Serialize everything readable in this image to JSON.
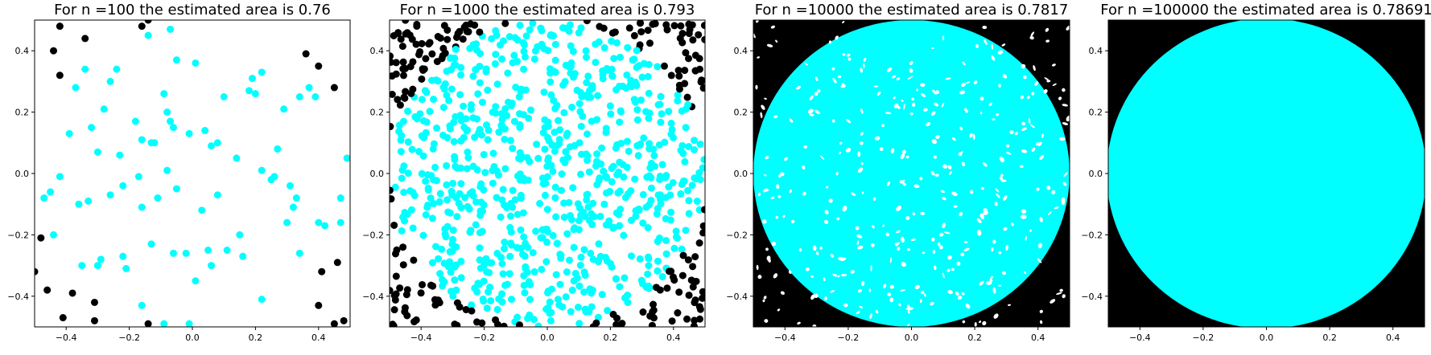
{
  "chart_data": [
    {
      "type": "scatter",
      "title": "For n =100 the estimated area is 0.76",
      "xlim": [
        -0.5,
        0.5
      ],
      "ylim": [
        -0.5,
        0.5
      ],
      "xticks": [
        -0.4,
        -0.2,
        0.0,
        0.2,
        0.4
      ],
      "xtick_labels": [
        "−0.4",
        "−0.2",
        "0.0",
        "0.2",
        "0.4"
      ],
      "yticks": [
        -0.4,
        -0.2,
        0.0,
        0.2,
        0.4
      ],
      "ytick_labels": [
        "−0.4",
        "−0.2",
        "0.0",
        "0.2",
        "0.4"
      ],
      "series": [
        {
          "color": "#00ffff",
          "points": [
            [
              -0.37,
              0.28
            ],
            [
              -0.34,
              0.34
            ],
            [
              -0.26,
              0.3
            ],
            [
              -0.24,
              0.34
            ],
            [
              -0.14,
              0.45
            ],
            [
              -0.07,
              0.47
            ],
            [
              -0.05,
              0.37
            ],
            [
              0.01,
              0.36
            ],
            [
              0.18,
              0.27
            ],
            [
              0.19,
              0.31
            ],
            [
              0.2,
              0.26
            ],
            [
              0.22,
              0.33
            ],
            [
              0.37,
              0.28
            ],
            [
              0.39,
              0.25
            ],
            [
              -0.39,
              0.13
            ],
            [
              -0.32,
              0.15
            ],
            [
              -0.28,
              0.21
            ],
            [
              -0.09,
              0.26
            ],
            [
              -0.08,
              0.2
            ],
            [
              -0.07,
              0.17
            ],
            [
              -0.13,
              0.1
            ],
            [
              -0.06,
              0.15
            ],
            [
              -0.01,
              0.13
            ],
            [
              0.04,
              0.14
            ],
            [
              0.06,
              0.09
            ],
            [
              0.08,
              0.1
            ],
            [
              -0.3,
              0.07
            ],
            [
              -0.23,
              0.06
            ],
            [
              -0.16,
              0.11
            ],
            [
              -0.12,
              0.1
            ],
            [
              0.29,
              0.21
            ],
            [
              0.34,
              0.25
            ],
            [
              -0.47,
              -0.08
            ],
            [
              -0.45,
              -0.06
            ],
            [
              -0.42,
              -0.01
            ],
            [
              -0.36,
              -0.1
            ],
            [
              -0.33,
              -0.09
            ],
            [
              -0.26,
              -0.07
            ],
            [
              -0.22,
              -0.04
            ],
            [
              -0.17,
              -0.01
            ],
            [
              -0.16,
              -0.11
            ],
            [
              -0.08,
              0.01
            ],
            [
              -0.11,
              -0.08
            ],
            [
              0.22,
              0.01
            ],
            [
              0.26,
              -0.01
            ],
            [
              0.25,
              -0.02
            ],
            [
              0.31,
              -0.04
            ],
            [
              0.33,
              -0.08
            ],
            [
              0.32,
              -0.11
            ],
            [
              0.3,
              -0.16
            ],
            [
              0.47,
              -0.08
            ],
            [
              0.49,
              0.05
            ],
            [
              -0.44,
              -0.2
            ],
            [
              -0.35,
              -0.3
            ],
            [
              -0.29,
              -0.28
            ],
            [
              -0.21,
              -0.31
            ],
            [
              -0.16,
              -0.43
            ],
            [
              -0.13,
              -0.23
            ],
            [
              -0.06,
              -0.26
            ],
            [
              -0.02,
              -0.26
            ],
            [
              0.01,
              -0.35
            ],
            [
              0.06,
              -0.3
            ],
            [
              0.05,
              -0.25
            ],
            [
              0.11,
              -0.25
            ],
            [
              0.16,
              -0.27
            ],
            [
              0.22,
              -0.41
            ],
            [
              0.34,
              -0.26
            ],
            [
              0.4,
              -0.16
            ],
            [
              0.42,
              -0.17
            ],
            [
              0.47,
              -0.16
            ],
            [
              -0.09,
              -0.49
            ],
            [
              -0.01,
              -0.49
            ],
            [
              -0.3,
              -0.3
            ],
            [
              -0.22,
              -0.27
            ],
            [
              0.03,
              -0.12
            ],
            [
              0.15,
              -0.2
            ],
            [
              -0.18,
              0.17
            ],
            [
              0.1,
              0.25
            ],
            [
              0.27,
              0.08
            ],
            [
              -0.05,
              -0.05
            ],
            [
              0.08,
              -0.07
            ],
            [
              0.14,
              0.05
            ]
          ]
        },
        {
          "color": "#000000",
          "points": [
            [
              -0.42,
              0.48
            ],
            [
              -0.34,
              0.44
            ],
            [
              -0.44,
              0.4
            ],
            [
              -0.42,
              0.32
            ],
            [
              0.36,
              0.39
            ],
            [
              0.4,
              0.35
            ],
            [
              0.45,
              0.28
            ],
            [
              -0.48,
              -0.21
            ],
            [
              -0.5,
              -0.32
            ],
            [
              -0.46,
              -0.38
            ],
            [
              -0.38,
              -0.39
            ],
            [
              -0.41,
              -0.47
            ],
            [
              -0.31,
              -0.42
            ],
            [
              -0.31,
              -0.48
            ],
            [
              -0.14,
              -0.49
            ],
            [
              0.41,
              -0.32
            ],
            [
              0.46,
              -0.29
            ],
            [
              0.4,
              -0.43
            ],
            [
              0.45,
              -0.49
            ],
            [
              0.48,
              -0.48
            ],
            [
              -0.14,
              0.5
            ],
            [
              -0.16,
              0.48
            ]
          ]
        }
      ]
    },
    {
      "type": "scatter",
      "title": "For n =1000 the estimated area is 0.793",
      "xlim": [
        -0.5,
        0.5
      ],
      "ylim": [
        -0.5,
        0.5
      ],
      "xticks": [
        -0.4,
        -0.2,
        0.0,
        0.2,
        0.4
      ],
      "xtick_labels": [
        "−0.4",
        "−0.2",
        "0.0",
        "0.2",
        "0.4"
      ],
      "yticks": [
        -0.4,
        -0.2,
        0.0,
        0.2,
        0.4
      ],
      "ytick_labels": [
        "−0.4",
        "−0.2",
        "0.0",
        "0.2",
        "0.4"
      ],
      "area_estimate": 0.793,
      "sample_count": 1000,
      "series": [
        {
          "color": "#00ffff",
          "region": "inside circle of radius 0.5"
        },
        {
          "color": "#000000",
          "region": "outside circle, inside square"
        }
      ]
    },
    {
      "type": "scatter",
      "title": "For n =10000 the estimated area is 0.7817",
      "xlim": [
        -0.5,
        0.5
      ],
      "ylim": [
        -0.5,
        0.5
      ],
      "xticks": [
        -0.4,
        -0.2,
        0.0,
        0.2,
        0.4
      ],
      "xtick_labels": [
        "−0.4",
        "−0.2",
        "0.0",
        "0.2",
        "0.4"
      ],
      "yticks": [
        -0.4,
        -0.2,
        0.0,
        0.2,
        0.4
      ],
      "ytick_labels": [
        "−0.4",
        "−0.2",
        "0.0",
        "0.2",
        "0.4"
      ],
      "area_estimate": 0.7817,
      "sample_count": 10000,
      "series": [
        {
          "color": "#00ffff",
          "region": "inside circle of radius 0.5"
        },
        {
          "color": "#000000",
          "region": "outside circle, inside square"
        }
      ]
    },
    {
      "type": "scatter",
      "title": "For n =100000 the estimated area is 0.78691",
      "xlim": [
        -0.5,
        0.5
      ],
      "ylim": [
        -0.5,
        0.5
      ],
      "xticks": [
        -0.4,
        -0.2,
        0.0,
        0.2,
        0.4
      ],
      "xtick_labels": [
        "−0.4",
        "−0.2",
        "0.0",
        "0.2",
        "0.4"
      ],
      "yticks": [
        -0.4,
        -0.2,
        0.0,
        0.2,
        0.4
      ],
      "ytick_labels": [
        "−0.4",
        "−0.2",
        "0.0",
        "0.2",
        "0.4"
      ],
      "area_estimate": 0.78691,
      "sample_count": 100000,
      "series": [
        {
          "color": "#00ffff",
          "region": "inside circle of radius 0.5"
        },
        {
          "color": "#000000",
          "region": "outside circle, inside square"
        }
      ]
    }
  ]
}
